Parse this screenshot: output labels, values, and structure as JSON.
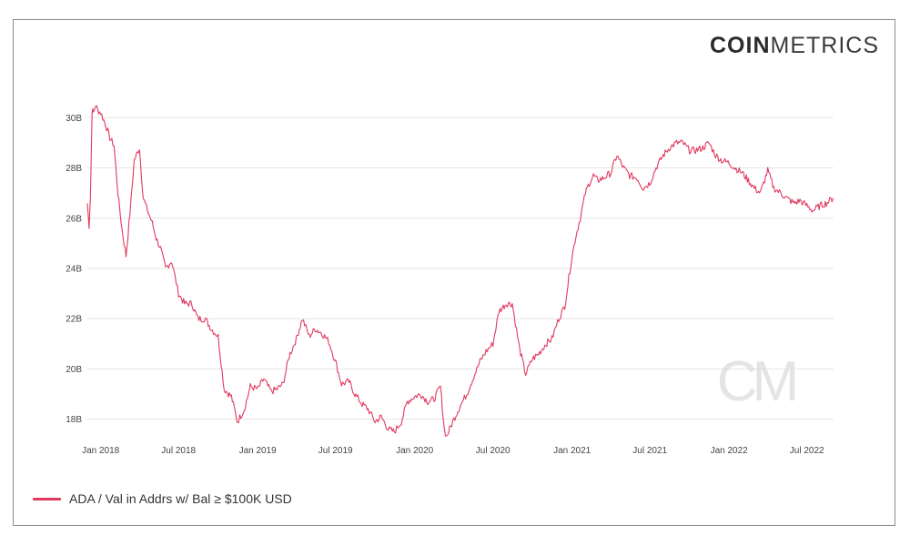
{
  "brand": {
    "logo_bold": "COIN",
    "logo_light": "METRICS",
    "watermark": "CM"
  },
  "colors": {
    "series": "#e03a5f",
    "grid": "#e6e6e6",
    "watermark": "#d9d9d9"
  },
  "legend": {
    "label": "ADA / Val in Addrs w/ Bal ≥ $100K USD",
    "placement": "bottom-left"
  },
  "chart_data": {
    "type": "line",
    "title": "",
    "xlabel": "",
    "ylabel": "",
    "grid": true,
    "x_ticks": [
      "Jan 2018",
      "Jul 2018",
      "Jan 2019",
      "Jul 2019",
      "Jan 2020",
      "Jul 2020",
      "Jan 2021",
      "Jul 2021",
      "Jan 2022",
      "Jul 2022"
    ],
    "y_ticks": [
      "18B",
      "20B",
      "22B",
      "24B",
      "26B",
      "28B",
      "30B"
    ],
    "y_tick_values": [
      18,
      20,
      22,
      24,
      26,
      28,
      30
    ],
    "ylim": [
      17.3,
      30.7
    ],
    "xlim": [
      "2017-12-01",
      "2022-09-01"
    ],
    "series": [
      {
        "name": "ADA / Val in Addrs w/ Bal ≥ $100K USD",
        "units": "B",
        "x": [
          "2017-12-01",
          "2017-12-05",
          "2017-12-08",
          "2017-12-12",
          "2017-12-15",
          "2017-12-20",
          "2017-12-25",
          "2018-01-01",
          "2018-01-08",
          "2018-01-15",
          "2018-01-22",
          "2018-02-01",
          "2018-02-10",
          "2018-02-20",
          "2018-03-01",
          "2018-03-10",
          "2018-03-20",
          "2018-04-01",
          "2018-04-10",
          "2018-04-20",
          "2018-05-01",
          "2018-05-10",
          "2018-05-20",
          "2018-06-01",
          "2018-06-15",
          "2018-07-01",
          "2018-07-15",
          "2018-08-01",
          "2018-08-15",
          "2018-09-01",
          "2018-09-15",
          "2018-10-01",
          "2018-10-15",
          "2018-11-01",
          "2018-11-15",
          "2018-12-01",
          "2018-12-15",
          "2019-01-01",
          "2019-01-15",
          "2019-02-01",
          "2019-02-15",
          "2019-03-01",
          "2019-03-15",
          "2019-04-01",
          "2019-04-15",
          "2019-05-01",
          "2019-05-15",
          "2019-06-01",
          "2019-06-15",
          "2019-07-01",
          "2019-07-15",
          "2019-08-01",
          "2019-08-15",
          "2019-09-01",
          "2019-09-15",
          "2019-10-01",
          "2019-10-15",
          "2019-11-01",
          "2019-11-15",
          "2019-12-01",
          "2019-12-15",
          "2020-01-01",
          "2020-01-15",
          "2020-02-01",
          "2020-02-15",
          "2020-03-01",
          "2020-03-10",
          "2020-03-15",
          "2020-04-01",
          "2020-04-15",
          "2020-05-01",
          "2020-05-15",
          "2020-06-01",
          "2020-06-15",
          "2020-07-01",
          "2020-07-15",
          "2020-08-01",
          "2020-08-15",
          "2020-09-01",
          "2020-09-15",
          "2020-10-01",
          "2020-10-15",
          "2020-11-01",
          "2020-11-15",
          "2020-12-01",
          "2020-12-15",
          "2021-01-01",
          "2021-01-10",
          "2021-01-20",
          "2021-02-01",
          "2021-02-10",
          "2021-02-20",
          "2021-03-01",
          "2021-03-15",
          "2021-04-01",
          "2021-04-15",
          "2021-05-01",
          "2021-05-15",
          "2021-06-01",
          "2021-06-15",
          "2021-07-01",
          "2021-07-15",
          "2021-08-01",
          "2021-08-15",
          "2021-09-01",
          "2021-09-15",
          "2021-10-01",
          "2021-10-15",
          "2021-11-01",
          "2021-11-15",
          "2021-12-01",
          "2021-12-15",
          "2022-01-01",
          "2022-01-15",
          "2022-02-01",
          "2022-02-15",
          "2022-03-01",
          "2022-03-15",
          "2022-04-01",
          "2022-04-15",
          "2022-05-01",
          "2022-05-15",
          "2022-06-01",
          "2022-06-15",
          "2022-07-01",
          "2022-07-15",
          "2022-08-01",
          "2022-08-15",
          "2022-08-31"
        ],
        "y": [
          26.6,
          25.7,
          26.8,
          30.3,
          30.2,
          30.5,
          30.3,
          30.2,
          29.9,
          29.6,
          29.2,
          28.9,
          27.0,
          25.5,
          24.5,
          26.2,
          28.3,
          28.8,
          26.8,
          26.3,
          25.8,
          25.2,
          24.8,
          24.0,
          24.3,
          23.0,
          22.6,
          22.6,
          22.0,
          22.0,
          21.6,
          21.3,
          19.2,
          18.9,
          17.9,
          18.4,
          19.3,
          19.2,
          19.6,
          19.1,
          19.2,
          19.4,
          20.5,
          21.2,
          22.0,
          21.3,
          21.6,
          21.4,
          21.1,
          20.3,
          19.4,
          19.5,
          19.0,
          18.6,
          18.4,
          17.9,
          18.1,
          17.6,
          17.5,
          17.9,
          18.7,
          18.9,
          19.0,
          18.7,
          18.8,
          19.3,
          17.6,
          17.3,
          18.0,
          18.5,
          19.0,
          19.6,
          20.3,
          20.7,
          21.0,
          22.3,
          22.6,
          22.6,
          20.8,
          19.8,
          20.4,
          20.6,
          21.0,
          21.2,
          22.0,
          22.5,
          24.5,
          25.3,
          26.0,
          27.0,
          27.4,
          27.7,
          27.5,
          27.6,
          27.8,
          28.5,
          28.0,
          27.7,
          27.6,
          27.2,
          27.4,
          28.0,
          28.5,
          28.8,
          29.0,
          29.0,
          28.7,
          28.7,
          28.8,
          29.0,
          28.5,
          28.3,
          28.2,
          28.0,
          27.8,
          27.5,
          27.2,
          27.0,
          27.9,
          27.2,
          27.0,
          26.8,
          26.6,
          26.7,
          26.5,
          26.3,
          26.5,
          26.6,
          26.8
        ]
      }
    ]
  }
}
